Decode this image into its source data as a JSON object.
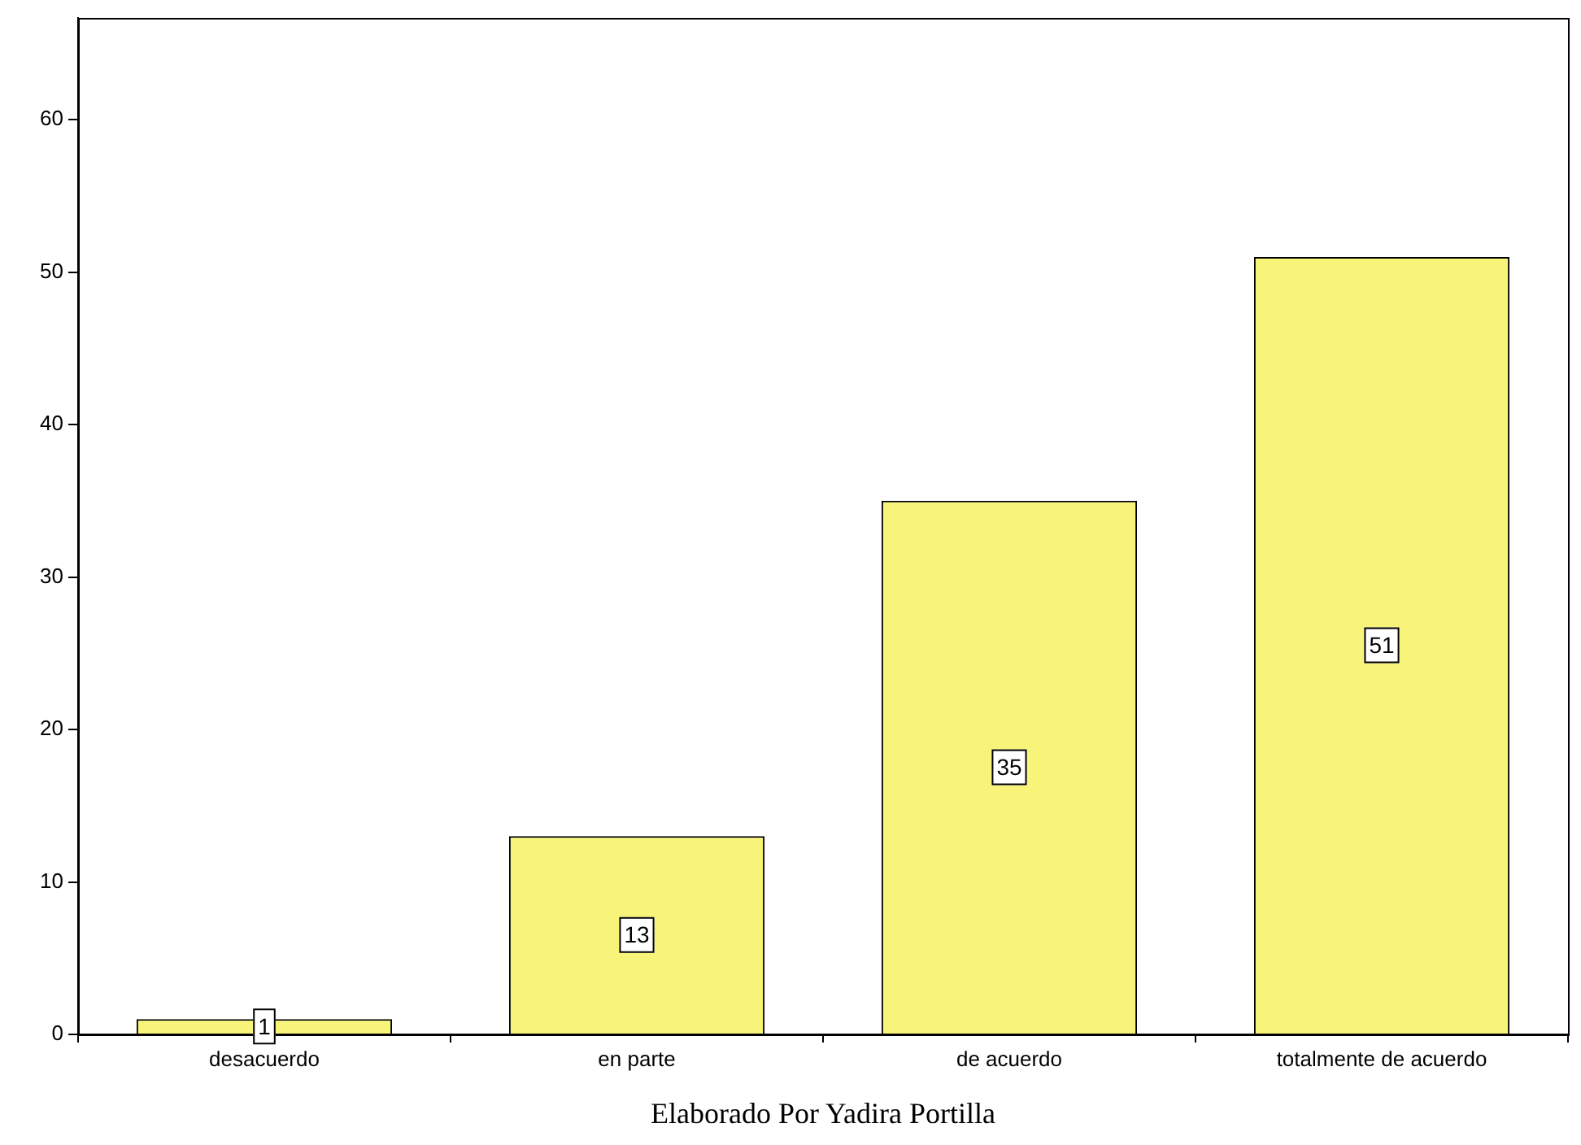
{
  "chart_data": {
    "type": "bar",
    "categories": [
      "desacuerdo",
      "en parte",
      "de acuerdo",
      "totalmente de acuerdo"
    ],
    "values": [
      1,
      13,
      35,
      51
    ],
    "color": "#f8f47a",
    "ylim": [
      0,
      66.7
    ],
    "yticks": [
      0,
      10,
      20,
      30,
      40,
      50,
      60
    ],
    "grid": false,
    "legend": false,
    "data_labels": true,
    "annotations": [
      "Elaborado Por Yadira Portilla"
    ]
  }
}
